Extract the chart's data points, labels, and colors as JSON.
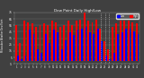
{
  "title": "Dew Point Daily High/Low",
  "left_label": "Milwaukee Weather Dew Point",
  "days": [
    1,
    2,
    3,
    4,
    5,
    6,
    7,
    8,
    9,
    10,
    11,
    12,
    13,
    14,
    15,
    16,
    17,
    18,
    19,
    20,
    21,
    22,
    23,
    24,
    25,
    26,
    27,
    28,
    29,
    30,
    31
  ],
  "highs": [
    55,
    28,
    62,
    60,
    58,
    52,
    55,
    58,
    56,
    62,
    60,
    52,
    56,
    62,
    55,
    62,
    64,
    75,
    62,
    60,
    64,
    50,
    30,
    18,
    52,
    58,
    62,
    62,
    62,
    60,
    58
  ],
  "lows": [
    8,
    3,
    8,
    48,
    42,
    18,
    12,
    42,
    28,
    48,
    44,
    18,
    32,
    44,
    40,
    48,
    50,
    52,
    44,
    42,
    50,
    30,
    8,
    2,
    12,
    42,
    44,
    50,
    50,
    46,
    42
  ],
  "high_color": "#ff0000",
  "low_color": "#0000ff",
  "bg_color": "#404040",
  "plot_bg": "#404040",
  "text_color": "#ffffff",
  "ylim": [
    -5,
    75
  ],
  "ytick_values": [
    -5,
    5,
    15,
    25,
    35,
    45,
    55,
    65,
    75
  ],
  "ytick_labels": [
    "-5",
    "5",
    "15",
    "25",
    "35",
    "45",
    "55",
    "65",
    "75"
  ],
  "dashed_vline_positions": [
    22,
    23,
    24
  ],
  "legend_labels": [
    "Low",
    "High"
  ]
}
